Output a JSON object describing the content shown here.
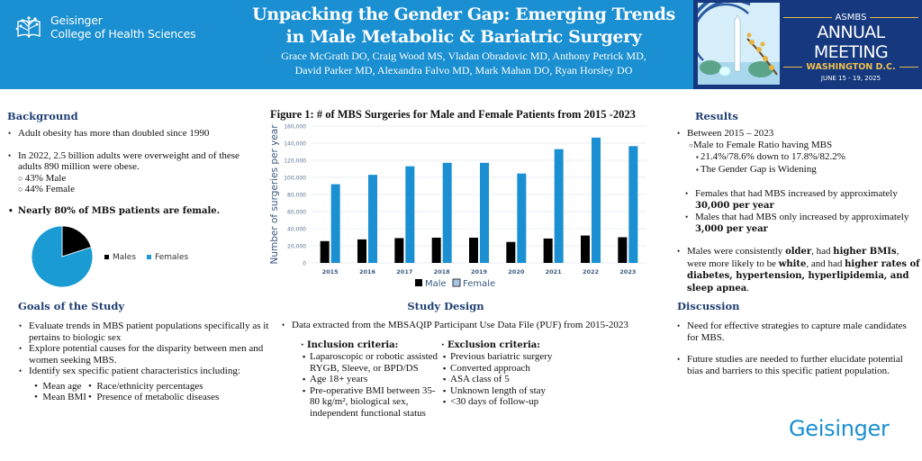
{
  "header": {
    "org_line1": "Geisinger",
    "org_line2": "College of Health Sciences",
    "title_line1": "Unpacking the Gender Gap: Emerging Trends",
    "title_line2": "in Male Metabolic & Bariatric Surgery",
    "authors_line1": "Grace McGrath DO, Craig Wood MS, Vladan Obradovic MD,  Anthony Petrick MD,",
    "authors_line2": "David Parker MD, Alexandra Falvo MD, Mark Mahan DO, Ryan Horsley DO",
    "meeting": {
      "org": "ASMBS",
      "name": "ANNUAL MEETING",
      "location": "WASHINGTON D.C.",
      "dates": "JUNE 15 - 19, 2025"
    },
    "colors": {
      "banner": "#1a8fd1",
      "meeting_bg": "#15387e",
      "accent_gold": "#f1c04d"
    }
  },
  "background": {
    "heading": "Background",
    "bullet1": "Adult obesity has more than doubled since 1990",
    "bullet2": "In 2022, 2.5 billion adults  were overweight and of these adults 890 million were obese.",
    "sub1": "43% Male",
    "sub2": "44% Female",
    "bullet3": "Nearly 80% of MBS patients are female.",
    "pie_legend": [
      "Males",
      "Females"
    ]
  },
  "goals": {
    "heading": "Goals of the Study",
    "bullets": [
      "Evaluate trends in MBS patient populations specifically as it pertains to biologic sex",
      "Explore potential causes for the disparity between men and women seeking MBS.",
      "Identify sex specific patient characteristics including:"
    ],
    "sub": [
      "Mean age",
      "Race/ethnicity percentages",
      "Mean BMI",
      "Presence of metabolic diseases"
    ]
  },
  "study_design": {
    "heading": "Study Design",
    "main": "Data extracted from the MBSAQIP Participant Use Data File (PUF)  from 2015-2023",
    "inclusion_heading": "Inclusion criteria:",
    "inclusion": [
      "Laparoscopic or robotic assisted RYGB, Sleeve, or BPD/DS",
      "Age 18+ years",
      "Pre-operative BMI between 35-80 kg/m², biological sex, independent functional status"
    ],
    "exclusion_heading": "Exclusion criteria:",
    "exclusion": [
      "Previous bariatric surgery",
      "Converted approach",
      "ASA class of 5",
      "Unknown length of stay",
      "<30 days of follow-up"
    ]
  },
  "results": {
    "heading": "Results",
    "b1": "Between 2015 – 2023",
    "b1_sub": "Male to Female Ratio having MBS",
    "b1_sub_items": [
      "21.4%/78.6% down to 17.8%/82.2%",
      "The Gender Gap is Widening"
    ],
    "b2_pre": "Females that had MBS increased by approximately ",
    "b2_bold": "30,000 per year",
    "b3_pre": "Males that had MBS only increased by approximately ",
    "b3_bold": "3,000 per year",
    "b4_parts": [
      {
        "t": "Males were consistently ",
        "b": false
      },
      {
        "t": "older",
        "b": true
      },
      {
        "t": ", had ",
        "b": false
      },
      {
        "t": "higher BMIs",
        "b": true
      },
      {
        "t": ", were more likely to be ",
        "b": false
      },
      {
        "t": "white",
        "b": true
      },
      {
        "t": ", and had ",
        "b": false
      },
      {
        "t": "higher rates of diabetes, hypertension, hyperlipidemia, and sleep apnea",
        "b": true
      },
      {
        "t": ".",
        "b": false
      }
    ]
  },
  "discussion": {
    "heading": "Discussion",
    "bullets": [
      "Need for effective strategies to capture male candidates for MBS.",
      "Future studies are needed to further elucidate potential bias and barriers to this specific patient population."
    ]
  },
  "brand": "Geisinger",
  "chart_data": [
    {
      "type": "bar",
      "title": "Figure 1: # of MBS Surgeries for Male and Female Patients from 2015 -2023",
      "xlabel": "",
      "ylabel": "Number of surgeries per year",
      "categories": [
        "2015",
        "2016",
        "2017",
        "2018",
        "2019",
        "2020",
        "2021",
        "2022",
        "2023"
      ],
      "series": [
        {
          "name": "Male",
          "color": "#000000",
          "values": [
            25500,
            27500,
            29000,
            29500,
            29500,
            24500,
            28500,
            32000,
            30000
          ]
        },
        {
          "name": "Female",
          "color": "#1a8fd1",
          "values": [
            92000,
            103000,
            113000,
            117000,
            117000,
            104500,
            133000,
            146500,
            136500
          ]
        }
      ],
      "yticks": [
        "0",
        "20,000",
        "40,000",
        "60,000",
        "80,000",
        "100,000",
        "120,000",
        "140,000",
        "160,000"
      ],
      "ylim": [
        0,
        160000
      ],
      "grid": true,
      "legend": "bottom"
    },
    {
      "type": "pie",
      "title": "Nearly 80% of MBS patients are female.",
      "labels": [
        "Males",
        "Females"
      ],
      "values": [
        20,
        80
      ],
      "colors": [
        "#000000",
        "#1a9bd4"
      ],
      "legend": "right"
    }
  ]
}
